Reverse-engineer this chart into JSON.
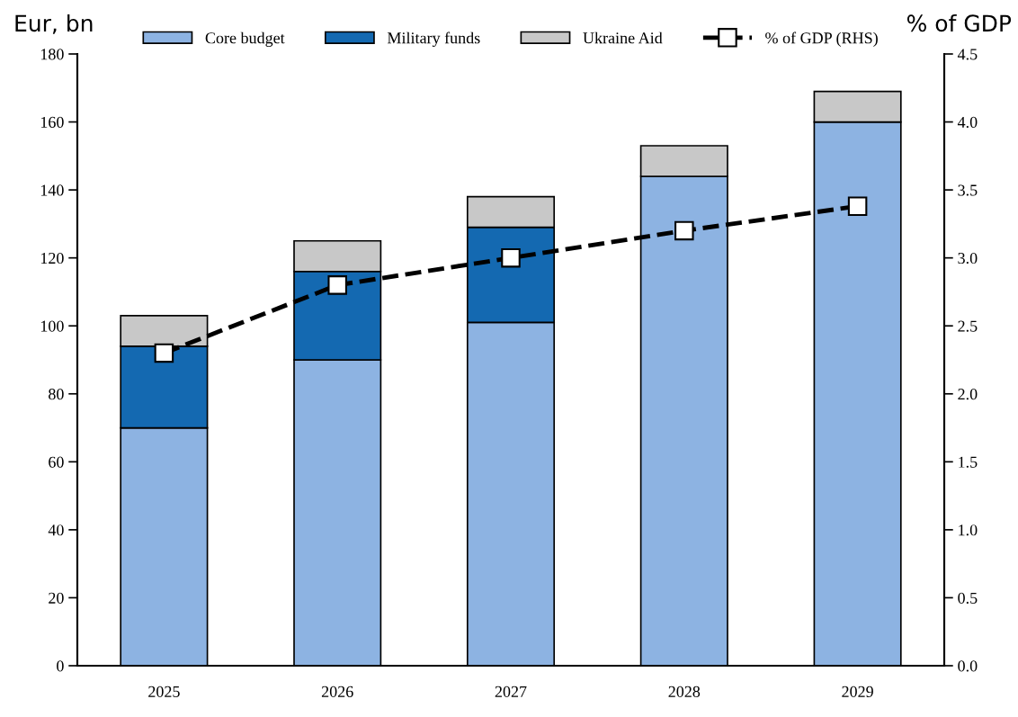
{
  "chart_data": {
    "type": "bar",
    "stacked": true,
    "ylabel": "Eur, bn",
    "y2label": "% of GDP",
    "categories": [
      "2025",
      "2026",
      "2027",
      "2028",
      "2029"
    ],
    "series": [
      {
        "name": "Core budget",
        "color": "#8db3e2",
        "values": [
          70,
          90,
          101,
          144,
          160
        ]
      },
      {
        "name": "Military funds",
        "color": "#1469b1",
        "values": [
          24,
          26,
          28,
          null,
          null
        ]
      },
      {
        "name": "Ukraine Aid",
        "color": "#c8c8c8",
        "values": [
          9,
          9,
          9,
          9,
          9
        ]
      },
      {
        "name": "% of GDP (RHS)",
        "type": "line",
        "axis": "y2",
        "color": "#000000",
        "values": [
          2.3,
          2.8,
          3.0,
          3.2,
          3.38
        ],
        "marker": "square",
        "line_style": "dashed"
      }
    ],
    "ylim": [
      0,
      180
    ],
    "yticks": [
      0,
      20,
      40,
      60,
      80,
      100,
      120,
      140,
      160,
      180
    ],
    "y2lim": [
      0,
      4.5
    ],
    "y2ticks": [
      {
        "value": 0,
        "label": "0.0"
      },
      {
        "value": 0.5,
        "label": "0.5"
      },
      {
        "value": 1,
        "label": "1.0"
      },
      {
        "value": 1.5,
        "label": "1.5"
      },
      {
        "value": 2,
        "label": "2.0"
      },
      {
        "value": 2.5,
        "label": "2.5"
      },
      {
        "value": 3,
        "label": "3.0"
      },
      {
        "value": 3.5,
        "label": "3.5"
      },
      {
        "value": 4,
        "label": "4.0"
      },
      {
        "value": 4.5,
        "label": "4.5"
      }
    ],
    "legend": "top",
    "grid": false
  }
}
